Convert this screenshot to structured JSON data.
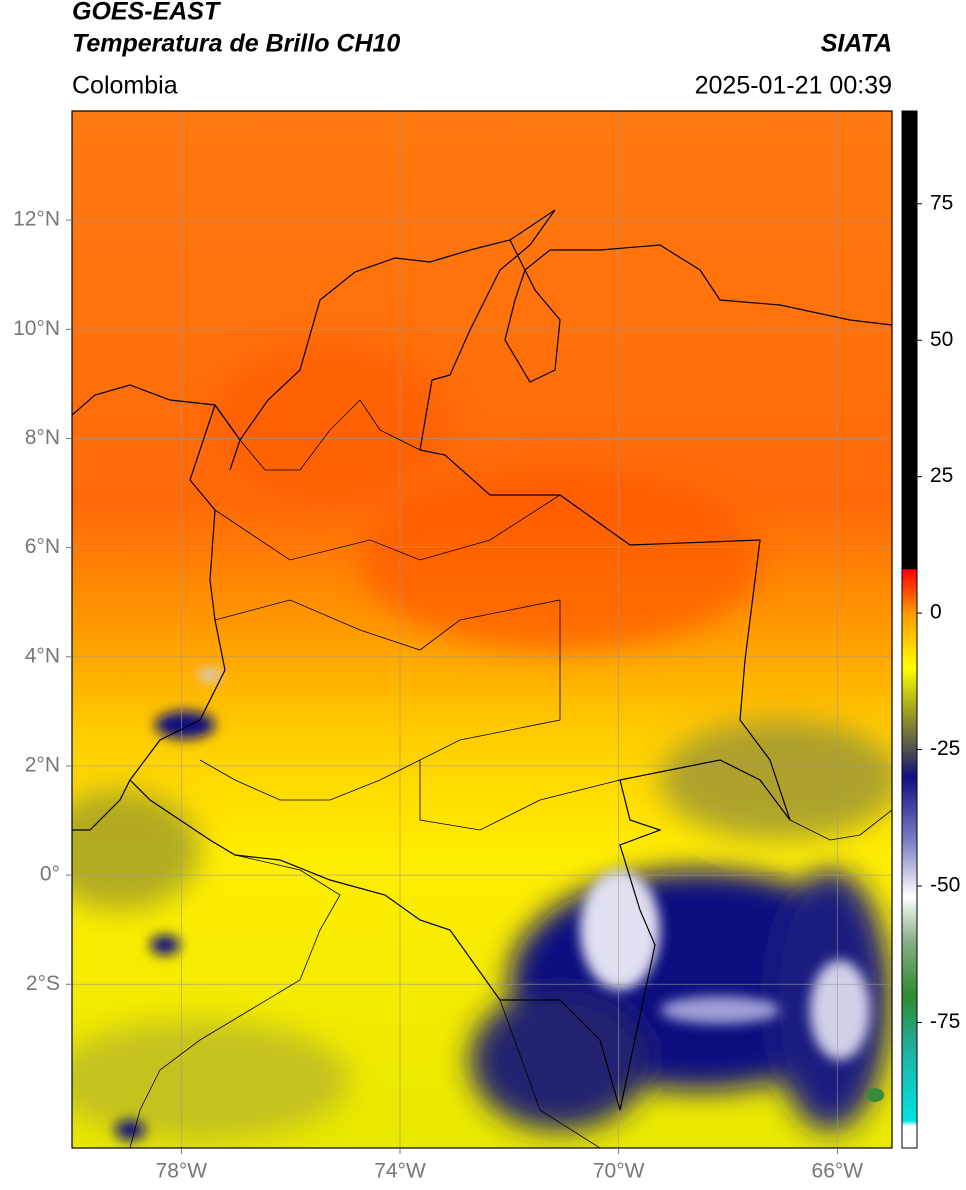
{
  "header": {
    "title_line1": "GOES-EAST",
    "title_line2": "Temperatura de Brillo CH10",
    "region": "Colombia",
    "source": "SIATA",
    "timestamp": "2025-01-21 00:39"
  },
  "map": {
    "lon_range": [
      -80,
      -65
    ],
    "lat_range": [
      -5,
      14
    ],
    "grid": true,
    "lon_ticks": [
      {
        "value": -78,
        "label": "78°W"
      },
      {
        "value": -74,
        "label": "74°W"
      },
      {
        "value": -70,
        "label": "70°W"
      },
      {
        "value": -66,
        "label": "66°W"
      }
    ],
    "lat_ticks": [
      {
        "value": 12,
        "label": "12°N"
      },
      {
        "value": 10,
        "label": "10°N"
      },
      {
        "value": 8,
        "label": "8°N"
      },
      {
        "value": 6,
        "label": "6°N"
      },
      {
        "value": 4,
        "label": "4°N"
      },
      {
        "value": 2,
        "label": "2°N"
      },
      {
        "value": 0,
        "label": "0°"
      },
      {
        "value": -2,
        "label": "2°S"
      }
    ]
  },
  "colorbar": {
    "range": [
      -98,
      92
    ],
    "ticks": [
      75,
      50,
      25,
      0,
      -25,
      -50,
      -75
    ],
    "stops": [
      {
        "value": -98,
        "color": "#ffffff"
      },
      {
        "value": -94,
        "color": "#ffffff"
      },
      {
        "value": -93,
        "color": "#00e5e5"
      },
      {
        "value": -80,
        "color": "#20b0a0"
      },
      {
        "value": -70,
        "color": "#2e8b2e"
      },
      {
        "value": -60,
        "color": "#88b088"
      },
      {
        "value": -52,
        "color": "#ffffff"
      },
      {
        "value": -42,
        "color": "#8080c8"
      },
      {
        "value": -30,
        "color": "#101080"
      },
      {
        "value": -25,
        "color": "#505050"
      },
      {
        "value": -18,
        "color": "#a0a020"
      },
      {
        "value": -10,
        "color": "#ffff00"
      },
      {
        "value": 0,
        "color": "#ff9900"
      },
      {
        "value": 8,
        "color": "#ff0000"
      },
      {
        "value": 8.1,
        "color": "#000000"
      },
      {
        "value": 92,
        "color": "#000000"
      }
    ]
  }
}
